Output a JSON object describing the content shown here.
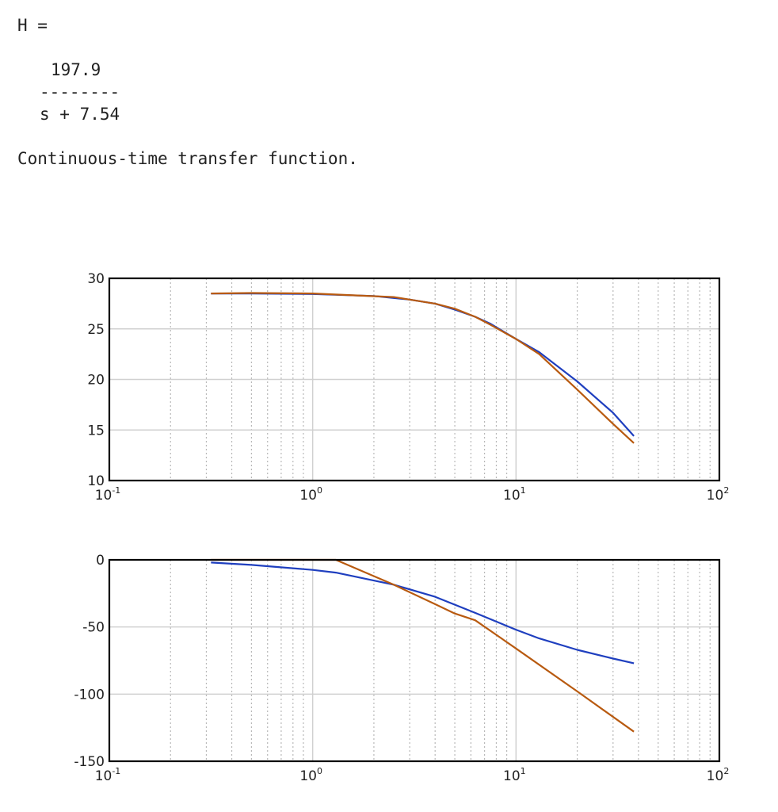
{
  "console": {
    "assign": "H =",
    "numerator": "197.9",
    "fraction_bar": "--------",
    "denominator": "s + 7.54",
    "description": "Continuous-time transfer function."
  },
  "colors": {
    "blue": "#1f3fbf",
    "orange": "#b85a10",
    "grid_major": "#d0d0d0",
    "grid_minor": "#b8b8b8"
  },
  "chart_data": [
    {
      "type": "line",
      "xscale": "log",
      "xlim": [
        0.1,
        100
      ],
      "ylim": [
        10,
        30
      ],
      "yticks": [
        10,
        15,
        20,
        25,
        30
      ],
      "xticks": [
        0.1,
        1,
        10,
        100
      ],
      "grid": true,
      "series": [
        {
          "color": "blue",
          "x": [
            0.316,
            0.5,
            1,
            2,
            3,
            4,
            5,
            6.3,
            7.5,
            10,
            13,
            20,
            30,
            38
          ],
          "y": [
            28.5,
            28.5,
            28.45,
            28.25,
            27.9,
            27.5,
            26.9,
            26.2,
            25.5,
            24.0,
            22.7,
            19.8,
            16.7,
            14.4
          ]
        },
        {
          "color": "orange",
          "x": [
            0.316,
            0.5,
            1,
            2.5,
            3,
            4,
            5,
            6.3,
            7.5,
            10,
            13,
            20,
            30,
            38
          ],
          "y": [
            28.5,
            28.55,
            28.5,
            28.15,
            27.9,
            27.5,
            27.0,
            26.2,
            25.4,
            24.0,
            22.5,
            19.0,
            15.6,
            13.7
          ]
        }
      ]
    },
    {
      "type": "line",
      "xscale": "log",
      "xlim": [
        0.1,
        100
      ],
      "ylim": [
        -150,
        0
      ],
      "yticks": [
        -150,
        -100,
        -50,
        0
      ],
      "xticks": [
        0.1,
        1,
        10,
        100
      ],
      "grid": true,
      "series": [
        {
          "color": "blue",
          "x": [
            0.316,
            0.5,
            1,
            1.3,
            2.5,
            4,
            6.3,
            10,
            13,
            20,
            30,
            38
          ],
          "y": [
            -2,
            -3.8,
            -7.5,
            -9.5,
            -18.5,
            -27.5,
            -39.5,
            -52,
            -58.5,
            -67,
            -73.5,
            -77
          ]
        },
        {
          "color": "orange",
          "x": [
            0.316,
            1,
            1.3,
            2.5,
            4,
            5,
            6.3,
            10,
            20,
            38
          ],
          "y": [
            0,
            0,
            0,
            -18.5,
            -33,
            -40,
            -45,
            -66,
            -98,
            -128
          ]
        }
      ]
    }
  ]
}
